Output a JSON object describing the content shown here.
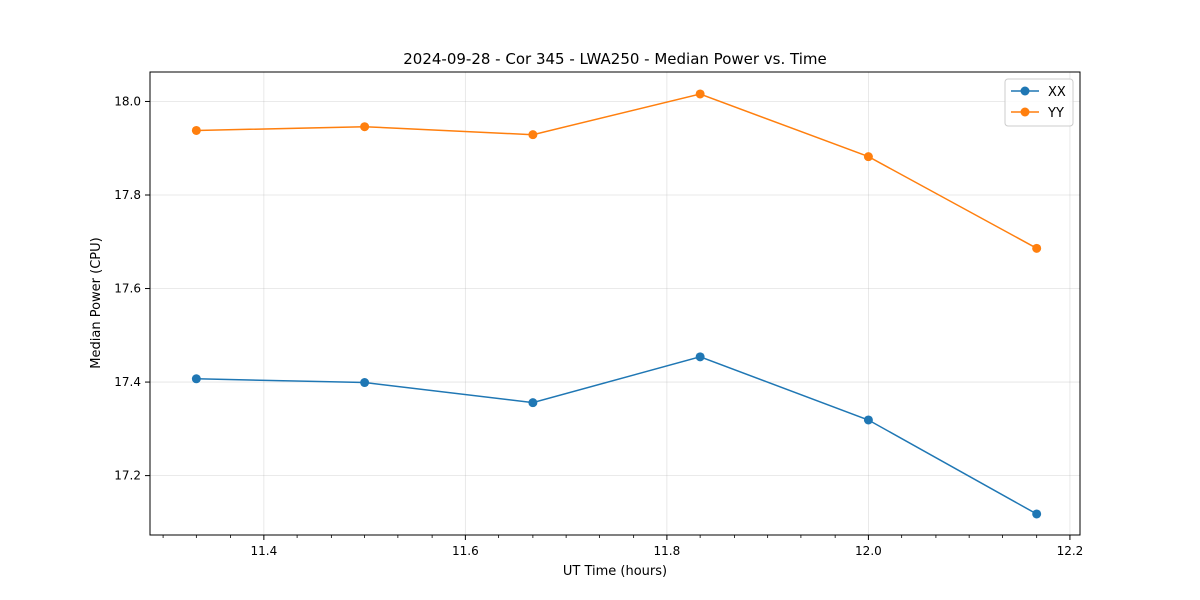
{
  "chart_data": {
    "type": "line",
    "title": "2024-09-28 - Cor 345 - LWA250 - Median Power vs. Time",
    "xlabel": "UT Time (hours)",
    "ylabel": "Median Power (CPU)",
    "xlim": [
      11.287,
      12.21
    ],
    "ylim": [
      17.073,
      18.063
    ],
    "grid": true,
    "legend_position": "upper-right",
    "x": [
      11.333,
      11.5,
      11.667,
      11.833,
      12.0,
      12.167
    ],
    "x_ticks": [
      11.4,
      11.6,
      11.8,
      12.0,
      12.2
    ],
    "x_tick_labels": [
      "11.4",
      "11.6",
      "11.8",
      "12.0",
      "12.2"
    ],
    "x_minor_ticks": [
      11.3,
      11.333,
      11.367,
      11.433,
      11.467,
      11.5,
      11.533,
      11.567,
      11.633,
      11.667,
      11.7,
      11.733,
      11.767,
      11.833,
      11.867,
      11.9,
      11.933,
      11.967,
      12.033,
      12.067,
      12.1,
      12.133,
      12.167
    ],
    "y_ticks": [
      17.2,
      17.4,
      17.6,
      17.8,
      18.0
    ],
    "y_tick_labels": [
      "17.2",
      "17.4",
      "17.6",
      "17.8",
      "18.0"
    ],
    "series": [
      {
        "name": "XX",
        "color": "#1f77b4",
        "values": [
          17.407,
          17.399,
          17.356,
          17.454,
          17.319,
          17.118
        ]
      },
      {
        "name": "YY",
        "color": "#ff7f0e",
        "values": [
          17.938,
          17.946,
          17.929,
          18.016,
          17.882,
          17.686
        ]
      }
    ]
  }
}
